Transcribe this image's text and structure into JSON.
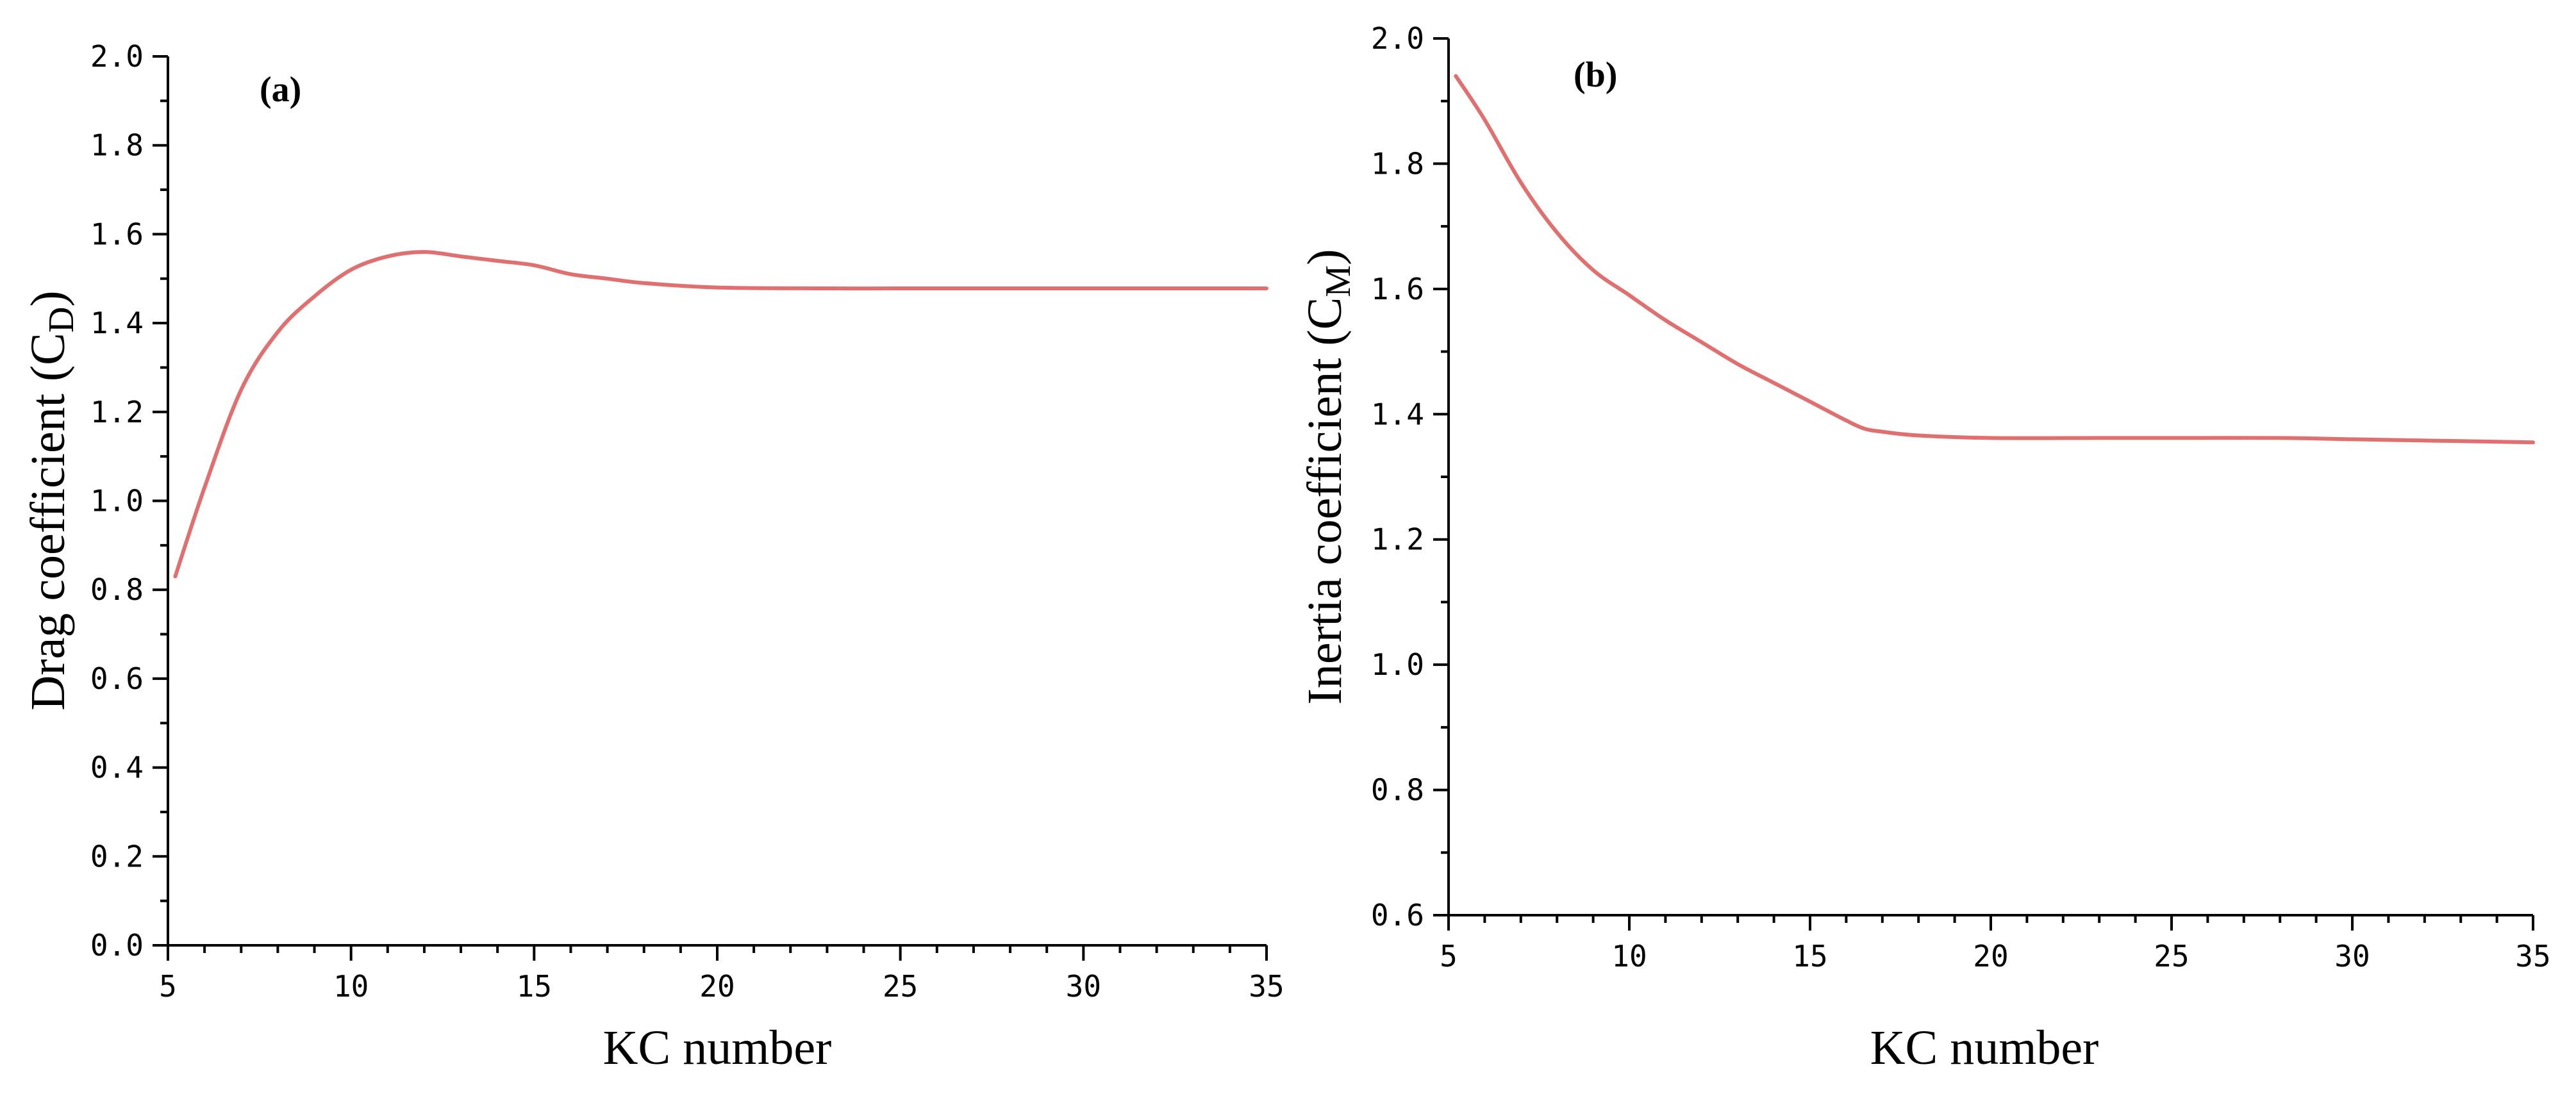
{
  "chart_data": [
    {
      "type": "line",
      "panel_label": "(a)",
      "xlabel": "KC number",
      "ylabel": {
        "main": "Drag coefficient (C",
        "sub": "D",
        "close": ")"
      },
      "xlim": [
        5,
        35
      ],
      "ylim": [
        0,
        2
      ],
      "xticks": [
        "5",
        "10",
        "15",
        "20",
        "25",
        "30",
        "35"
      ],
      "yticks": [
        "0.0",
        "0.2",
        "0.4",
        "0.6",
        "0.8",
        "1.0",
        "1.2",
        "1.4",
        "1.6",
        "1.8",
        "2.0"
      ],
      "color": "#e07070",
      "series": [
        {
          "x": [
            5.2,
            6,
            7,
            8,
            9,
            10,
            11,
            12,
            13,
            14,
            15,
            16,
            17,
            18,
            20,
            23,
            25,
            28,
            30,
            33,
            35
          ],
          "y": [
            0.83,
            1.03,
            1.25,
            1.38,
            1.46,
            1.52,
            1.55,
            1.56,
            1.55,
            1.54,
            1.53,
            1.51,
            1.5,
            1.49,
            1.48,
            1.478,
            1.478,
            1.478,
            1.478,
            1.478,
            1.478
          ]
        }
      ]
    },
    {
      "type": "line",
      "panel_label": "(b)",
      "xlabel": "KC number",
      "ylabel": {
        "main": "Inertia coefficient (C",
        "sub": "M",
        "close": ")"
      },
      "xlim": [
        5,
        35
      ],
      "ylim": [
        0.6,
        2.0
      ],
      "xticks": [
        "5",
        "10",
        "15",
        "20",
        "25",
        "30",
        "35"
      ],
      "yticks": [
        "0.6",
        "0.8",
        "1.0",
        "1.2",
        "1.4",
        "1.6",
        "1.8",
        "2.0"
      ],
      "color": "#e07070",
      "series": [
        {
          "x": [
            5.2,
            6,
            7,
            8,
            9,
            10,
            11,
            12,
            13,
            14,
            15,
            16,
            16.5,
            17,
            18,
            20,
            23,
            25,
            28,
            30,
            33,
            35
          ],
          "y": [
            1.94,
            1.87,
            1.77,
            1.69,
            1.63,
            1.59,
            1.55,
            1.515,
            1.48,
            1.45,
            1.42,
            1.39,
            1.377,
            1.372,
            1.366,
            1.362,
            1.362,
            1.362,
            1.362,
            1.36,
            1.357,
            1.355
          ]
        }
      ]
    }
  ]
}
